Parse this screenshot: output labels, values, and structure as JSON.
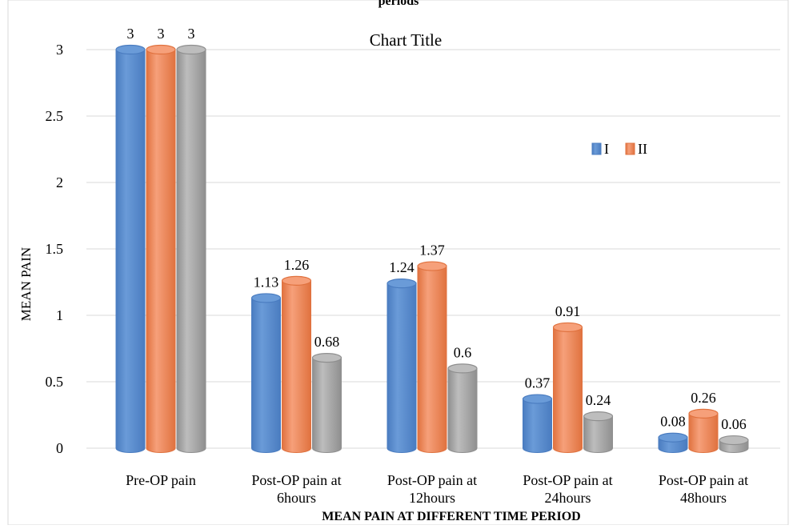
{
  "chart_data": {
    "type": "bar",
    "title_fragment": "periods",
    "title": "Chart Title",
    "xlabel": "MEAN PAIN AT DIFFERENT TIME PERIOD",
    "ylabel": "MEAN PAIN",
    "ylim": [
      0,
      3
    ],
    "yticks": [
      "0",
      "0.5",
      "1",
      "1.5",
      "2",
      "2.5",
      "3"
    ],
    "ytick_values": [
      0,
      0.5,
      1,
      1.5,
      2,
      2.5,
      3
    ],
    "grid": true,
    "legend_position": "right, inside plot",
    "categories": [
      [
        "Pre-OP pain"
      ],
      [
        "Post-OP pain at",
        "6hours"
      ],
      [
        "Post-OP pain at",
        "12hours"
      ],
      [
        "Post-OP pain at",
        "24hours"
      ],
      [
        "Post-OP pain at",
        "48hours"
      ]
    ],
    "series": [
      {
        "name": "I",
        "values": [
          3,
          1.13,
          1.24,
          0.37,
          0.08
        ],
        "labels": [
          "3",
          "1.13",
          "1.24",
          "0.37",
          "0.08"
        ],
        "color": "#6a9bd8",
        "dark": "#4a7cc0"
      },
      {
        "name": "II",
        "values": [
          3,
          1.26,
          1.37,
          0.91,
          0.26
        ],
        "labels": [
          "3",
          "1.26",
          "1.37",
          "0.91",
          "0.26"
        ],
        "color": "#f6a07a",
        "dark": "#e0723f"
      },
      {
        "values": [
          3,
          0.68,
          0.6,
          0.24,
          0.06
        ],
        "labels": [
          "3",
          "0.68",
          "0.6",
          "0.24",
          "0.06"
        ],
        "color": "#bdbdbd",
        "dark": "#8f8f8f"
      }
    ]
  }
}
